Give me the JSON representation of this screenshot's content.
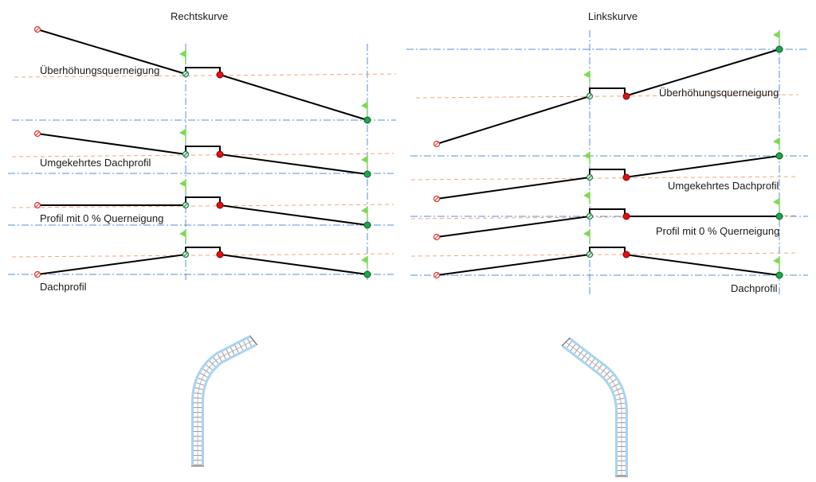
{
  "titles": {
    "left": "Rechtskurve",
    "right": "Linkskurve"
  },
  "labels": {
    "superelevation": "Überhöhungsquerneigung",
    "reverse_crown": "Umgekehrtes Dachprofil",
    "zero_slope": "Profil mit 0 % Querneigung",
    "crown": "Dachprofil"
  },
  "colors": {
    "point_left": "#e03030",
    "point_hinge": "#6fcf97",
    "point_red": "#e01010",
    "point_green": "#1ca84a",
    "flag": "#7ed957",
    "guide_blue": "#5b8fd6",
    "guide_orange": "#f2a77c",
    "road_blue": "#8fc3ef"
  }
}
